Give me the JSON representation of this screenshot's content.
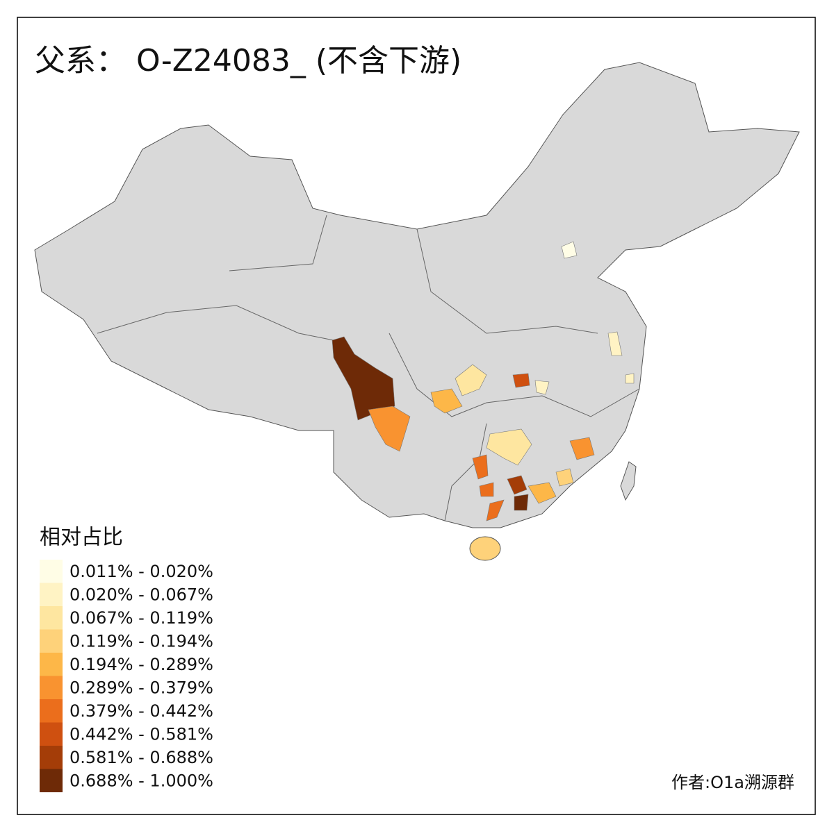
{
  "title": "父系： O-Z24083_ (不含下游)",
  "legend": {
    "title": "相对占比",
    "items": [
      {
        "label": "0.011% - 0.020%",
        "color": "#fffde6"
      },
      {
        "label": "0.020% - 0.067%",
        "color": "#fff3c4"
      },
      {
        "label": "0.067% - 0.119%",
        "color": "#fee6a0"
      },
      {
        "label": "0.119% - 0.194%",
        "color": "#fed27a"
      },
      {
        "label": "0.194% - 0.289%",
        "color": "#fdb748"
      },
      {
        "label": "0.289% - 0.379%",
        "color": "#f99330"
      },
      {
        "label": "0.379% - 0.442%",
        "color": "#eb6e1c"
      },
      {
        "label": "0.442% - 0.581%",
        "color": "#cf5010"
      },
      {
        "label": "0.581% - 0.688%",
        "color": "#a43d08"
      },
      {
        "label": "0.688% - 1.000%",
        "color": "#6e2a07"
      }
    ]
  },
  "credit": "作者:O1a溯源群"
}
